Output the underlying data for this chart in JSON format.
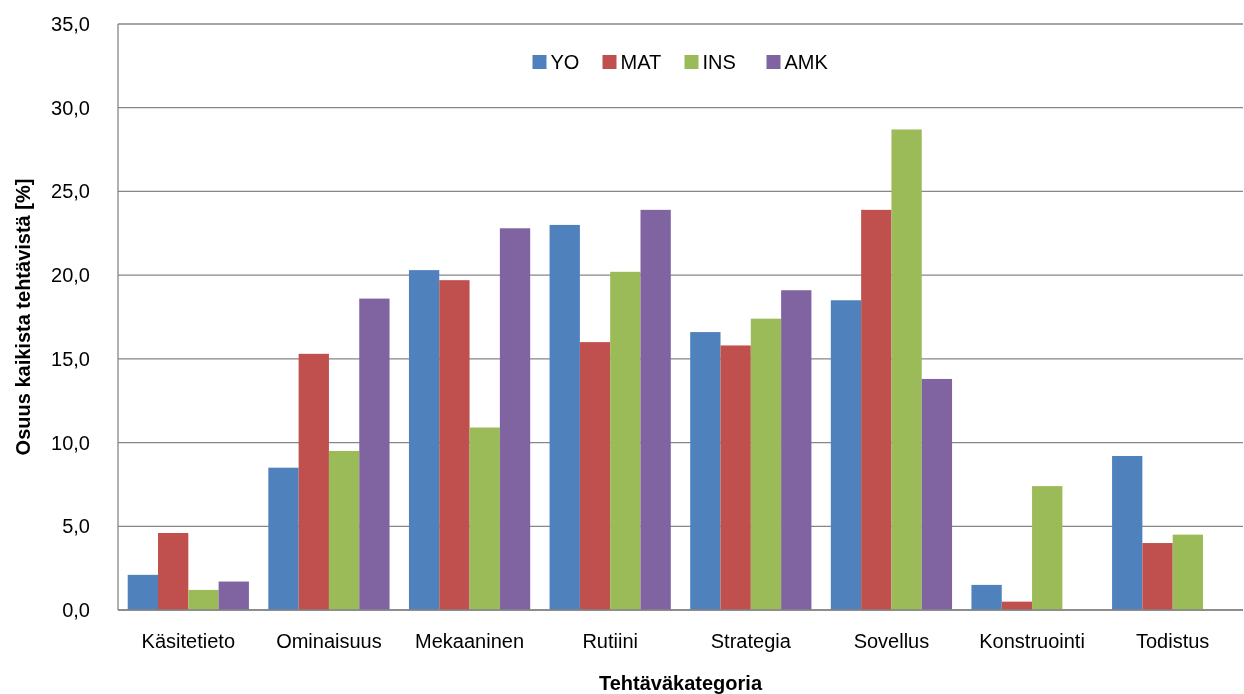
{
  "chart_data": {
    "type": "bar",
    "xlabel": "Tehtäväkategoria",
    "ylabel": "Osuus kaikista tehtävistä [%]",
    "categories": [
      "Käsitetieto",
      "Ominaisuus",
      "Mekaaninen",
      "Rutiini",
      "Strategia",
      "Sovellus",
      "Konstruointi",
      "Todistus"
    ],
    "series": [
      {
        "name": "YO",
        "color": "#4f81bd",
        "values": [
          2.1,
          8.5,
          20.3,
          23.0,
          16.6,
          18.5,
          1.5,
          9.2
        ]
      },
      {
        "name": "MAT",
        "color": "#c0504d",
        "values": [
          4.6,
          15.3,
          19.7,
          16.0,
          15.8,
          23.9,
          0.5,
          4.0
        ]
      },
      {
        "name": "INS",
        "color": "#9bbb59",
        "values": [
          1.2,
          9.5,
          10.9,
          20.2,
          17.4,
          28.7,
          7.4,
          4.5
        ]
      },
      {
        "name": "AMK",
        "color": "#8064a2",
        "values": [
          1.7,
          18.6,
          22.8,
          23.9,
          19.1,
          13.8,
          null,
          null
        ]
      }
    ],
    "ylim": [
      0,
      35
    ],
    "yticks": [
      {
        "value": 0,
        "label": "0,0"
      },
      {
        "value": 5,
        "label": "5,0"
      },
      {
        "value": 10,
        "label": "10,0"
      },
      {
        "value": 15,
        "label": "15,0"
      },
      {
        "value": 20,
        "label": "20,0"
      },
      {
        "value": 25,
        "label": "25,0"
      },
      {
        "value": 30,
        "label": "30,0"
      },
      {
        "value": 35,
        "label": "35,0"
      }
    ],
    "grid": "y",
    "legend": "top"
  }
}
